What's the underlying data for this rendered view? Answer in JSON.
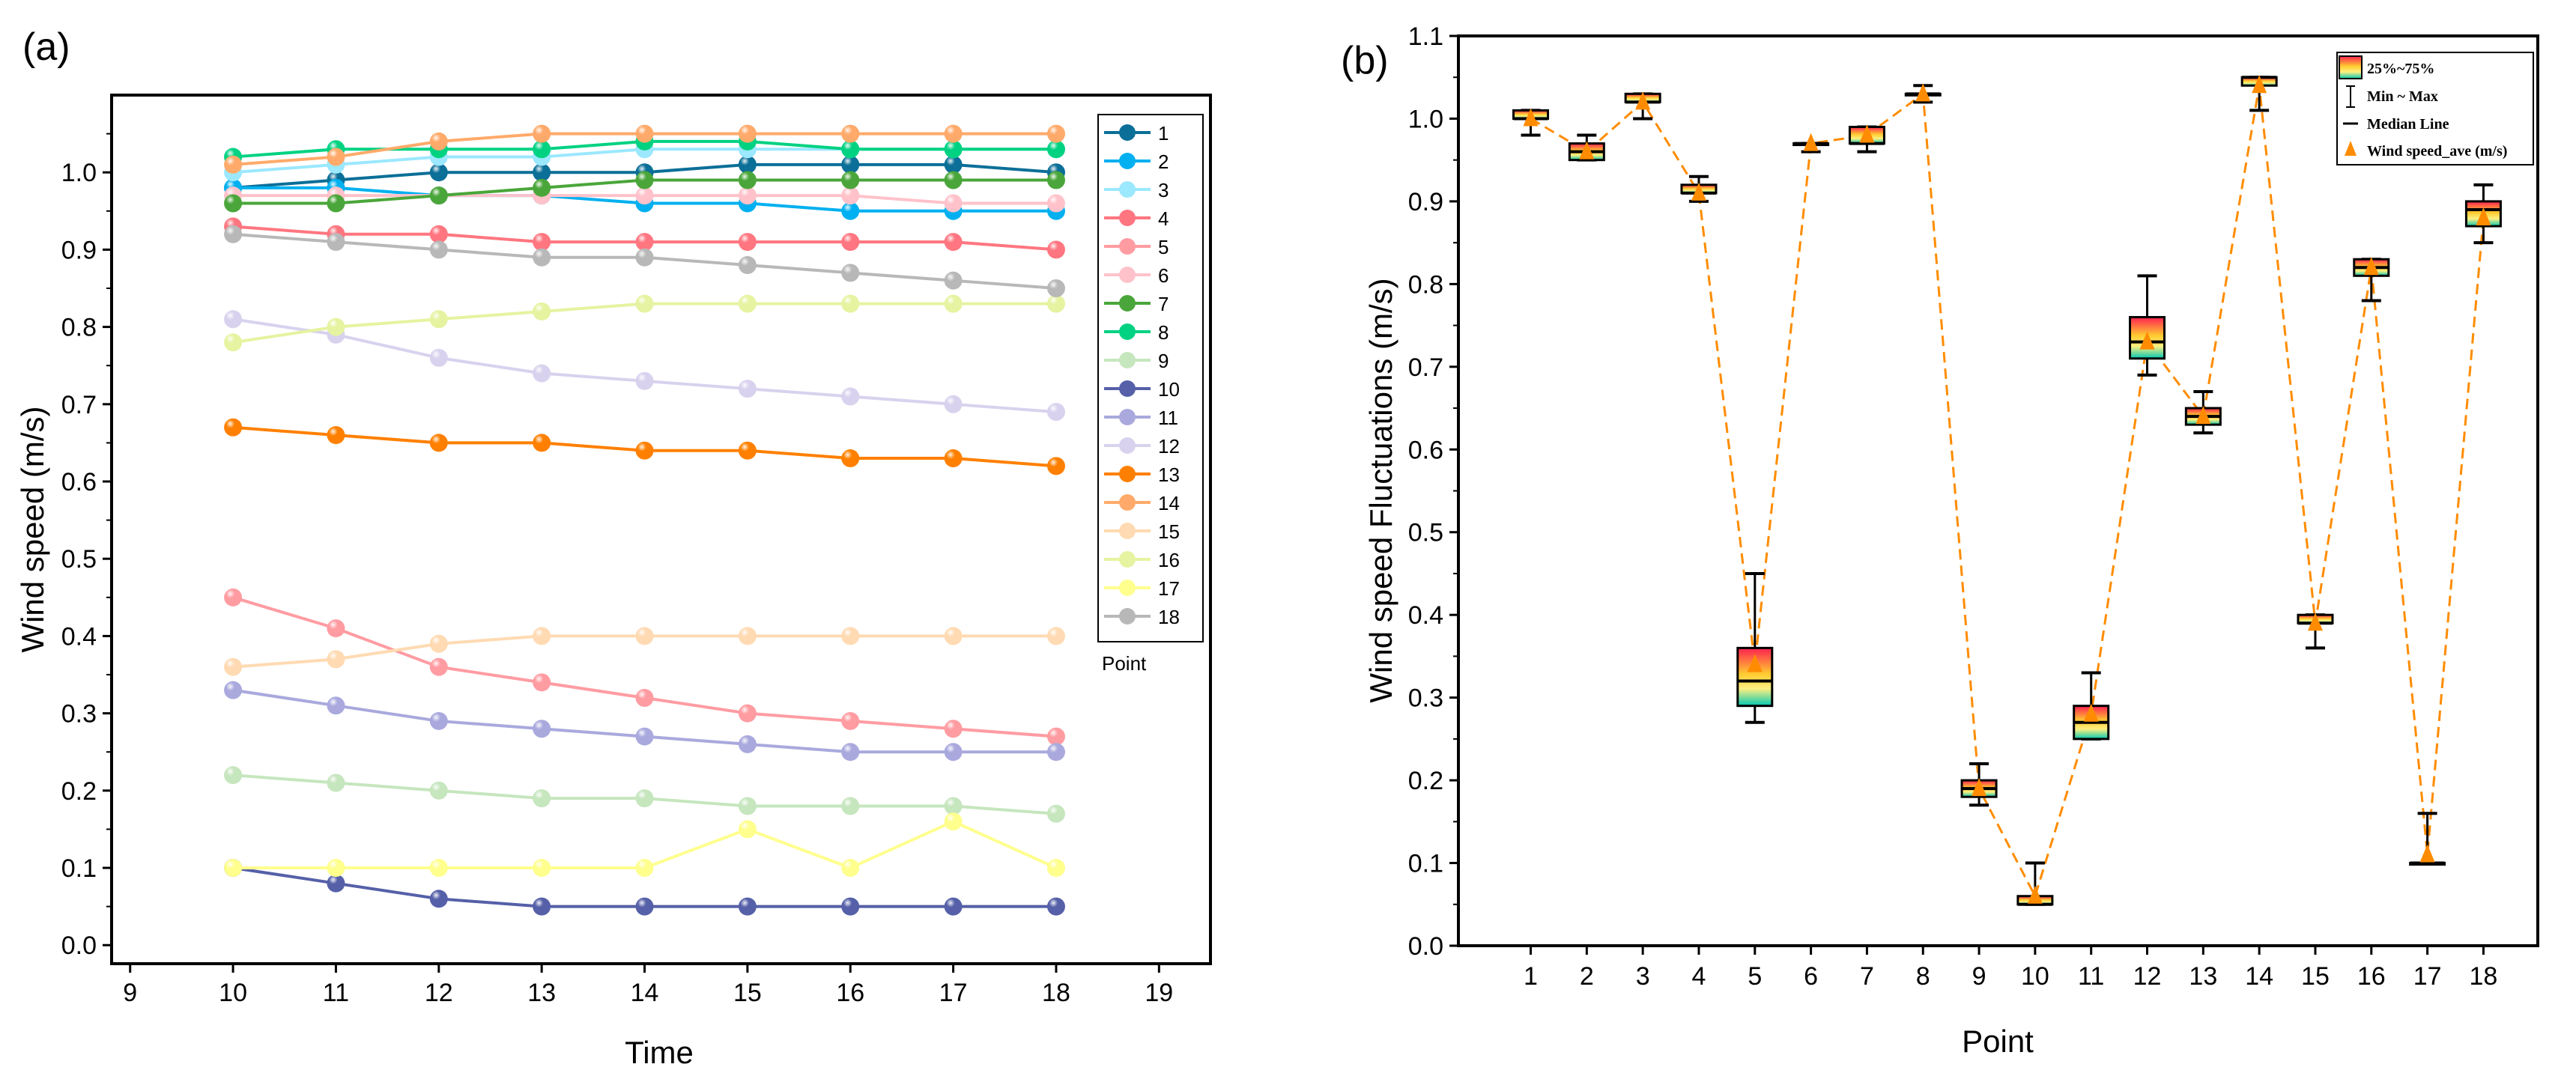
{
  "chart_data": [
    {
      "type": "line",
      "panel_label": "(a)",
      "xlabel": "Time",
      "ylabel": "Wind speed (m/s)",
      "xlim": [
        9,
        19
      ],
      "ylim": [
        0,
        1.1
      ],
      "xticks": [
        9,
        10,
        11,
        12,
        13,
        14,
        15,
        16,
        17,
        18,
        19
      ],
      "yticks": [
        "0.0",
        "0.1",
        "0.2",
        "0.3",
        "0.4",
        "0.5",
        "0.6",
        "0.7",
        "0.8",
        "0.9",
        "1.0"
      ],
      "legend_title": "Point",
      "legend_placement": "right",
      "x": [
        10,
        11,
        12,
        13,
        14,
        15,
        16,
        17,
        18
      ],
      "series": [
        {
          "name": "1",
          "color": "#0b6f98",
          "values": [
            0.98,
            0.99,
            1.0,
            1.0,
            1.0,
            1.01,
            1.01,
            1.01,
            1.0
          ]
        },
        {
          "name": "2",
          "color": "#00b0f0",
          "values": [
            0.98,
            0.98,
            0.97,
            0.97,
            0.96,
            0.96,
            0.95,
            0.95,
            0.95
          ]
        },
        {
          "name": "3",
          "color": "#9be8ff",
          "values": [
            1.0,
            1.01,
            1.02,
            1.02,
            1.03,
            1.03,
            1.03,
            1.03,
            1.03
          ]
        },
        {
          "name": "4",
          "color": "#ff7680",
          "values": [
            0.93,
            0.92,
            0.92,
            0.91,
            0.91,
            0.91,
            0.91,
            0.91,
            0.9
          ]
        },
        {
          "name": "5",
          "color": "#ff9ca2",
          "values": [
            0.45,
            0.41,
            0.36,
            0.34,
            0.32,
            0.3,
            0.29,
            0.28,
            0.27
          ]
        },
        {
          "name": "6",
          "color": "#ffc2ca",
          "values": [
            0.97,
            0.97,
            0.97,
            0.97,
            0.97,
            0.97,
            0.97,
            0.96,
            0.96
          ]
        },
        {
          "name": "7",
          "color": "#4aa63a",
          "values": [
            0.96,
            0.96,
            0.97,
            0.98,
            0.99,
            0.99,
            0.99,
            0.99,
            0.99
          ]
        },
        {
          "name": "8",
          "color": "#00d282",
          "values": [
            1.02,
            1.03,
            1.03,
            1.03,
            1.04,
            1.04,
            1.03,
            1.03,
            1.03
          ]
        },
        {
          "name": "9",
          "color": "#c6e6be",
          "values": [
            0.22,
            0.21,
            0.2,
            0.19,
            0.19,
            0.18,
            0.18,
            0.18,
            0.17
          ]
        },
        {
          "name": "10",
          "color": "#5560a8",
          "values": [
            0.1,
            0.08,
            0.06,
            0.05,
            0.05,
            0.05,
            0.05,
            0.05,
            0.05
          ]
        },
        {
          "name": "11",
          "color": "#a9a9de",
          "values": [
            0.33,
            0.31,
            0.29,
            0.28,
            0.27,
            0.26,
            0.25,
            0.25,
            0.25
          ]
        },
        {
          "name": "12",
          "color": "#d9d2ee",
          "values": [
            0.81,
            0.79,
            0.76,
            0.74,
            0.73,
            0.72,
            0.71,
            0.7,
            0.69
          ]
        },
        {
          "name": "13",
          "color": "#ff8000",
          "values": [
            0.67,
            0.66,
            0.65,
            0.65,
            0.64,
            0.64,
            0.63,
            0.63,
            0.62
          ]
        },
        {
          "name": "14",
          "color": "#ffaa6a",
          "values": [
            1.01,
            1.02,
            1.04,
            1.05,
            1.05,
            1.05,
            1.05,
            1.05,
            1.05
          ]
        },
        {
          "name": "15",
          "color": "#ffdab2",
          "values": [
            0.36,
            0.37,
            0.39,
            0.4,
            0.4,
            0.4,
            0.4,
            0.4,
            0.4
          ]
        },
        {
          "name": "16",
          "color": "#e6f3a0",
          "values": [
            0.78,
            0.8,
            0.81,
            0.82,
            0.83,
            0.83,
            0.83,
            0.83,
            0.83
          ]
        },
        {
          "name": "17",
          "color": "#ffff8e",
          "values": [
            0.1,
            0.1,
            0.1,
            0.1,
            0.1,
            0.15,
            0.1,
            0.16,
            0.1
          ]
        },
        {
          "name": "18",
          "color": "#b8b8b8",
          "values": [
            0.92,
            0.91,
            0.9,
            0.89,
            0.89,
            0.88,
            0.87,
            0.86,
            0.85
          ]
        }
      ]
    },
    {
      "type": "box",
      "panel_label": "(b)",
      "xlabel": "Point",
      "ylabel": "Wind speed Fluctuations (m/s)",
      "ylim": [
        0,
        1.1
      ],
      "yticks": [
        "0.0",
        "0.1",
        "0.2",
        "0.3",
        "0.4",
        "0.5",
        "0.6",
        "0.7",
        "0.8",
        "0.9",
        "1.0",
        "1.1"
      ],
      "categories": [
        "1",
        "2",
        "3",
        "4",
        "5",
        "6",
        "7",
        "8",
        "9",
        "10",
        "11",
        "12",
        "13",
        "14",
        "15",
        "16",
        "17",
        "18"
      ],
      "legend_placement": "top-right",
      "legend": [
        "25%~75%",
        "Min ~ Max",
        "Median Line",
        "Wind speed_ave (m/s)"
      ],
      "mean_color": "#ff8c00",
      "boxes": [
        {
          "min": 0.98,
          "q1": 1.0,
          "median": 1.0,
          "q3": 1.01,
          "max": 1.01,
          "mean": 1.0
        },
        {
          "min": 0.95,
          "q1": 0.95,
          "median": 0.96,
          "q3": 0.97,
          "max": 0.98,
          "mean": 0.96
        },
        {
          "min": 1.0,
          "q1": 1.02,
          "median": 1.02,
          "q3": 1.03,
          "max": 1.03,
          "mean": 1.02
        },
        {
          "min": 0.9,
          "q1": 0.91,
          "median": 0.91,
          "q3": 0.92,
          "max": 0.93,
          "mean": 0.91
        },
        {
          "min": 0.27,
          "q1": 0.29,
          "median": 0.32,
          "q3": 0.36,
          "max": 0.45,
          "mean": 0.34
        },
        {
          "min": 0.96,
          "q1": 0.97,
          "median": 0.97,
          "q3": 0.97,
          "max": 0.97,
          "mean": 0.97
        },
        {
          "min": 0.96,
          "q1": 0.97,
          "median": 0.97,
          "q3": 0.99,
          "max": 0.99,
          "mean": 0.98
        },
        {
          "min": 1.02,
          "q1": 1.03,
          "median": 1.03,
          "q3": 1.03,
          "max": 1.04,
          "mean": 1.03
        },
        {
          "min": 0.17,
          "q1": 0.18,
          "median": 0.19,
          "q3": 0.2,
          "max": 0.22,
          "mean": 0.19
        },
        {
          "min": 0.05,
          "q1": 0.05,
          "median": 0.05,
          "q3": 0.06,
          "max": 0.1,
          "mean": 0.06
        },
        {
          "min": 0.25,
          "q1": 0.25,
          "median": 0.27,
          "q3": 0.29,
          "max": 0.33,
          "mean": 0.28
        },
        {
          "min": 0.69,
          "q1": 0.71,
          "median": 0.73,
          "q3": 0.76,
          "max": 0.81,
          "mean": 0.73
        },
        {
          "min": 0.62,
          "q1": 0.63,
          "median": 0.64,
          "q3": 0.65,
          "max": 0.67,
          "mean": 0.64
        },
        {
          "min": 1.01,
          "q1": 1.04,
          "median": 1.05,
          "q3": 1.05,
          "max": 1.05,
          "mean": 1.04
        },
        {
          "min": 0.36,
          "q1": 0.39,
          "median": 0.39,
          "q3": 0.4,
          "max": 0.4,
          "mean": 0.39
        },
        {
          "min": 0.78,
          "q1": 0.81,
          "median": 0.82,
          "q3": 0.83,
          "max": 0.83,
          "mean": 0.82
        },
        {
          "min": 0.1,
          "q1": 0.1,
          "median": 0.1,
          "q3": 0.1,
          "max": 0.16,
          "mean": 0.11
        },
        {
          "min": 0.85,
          "q1": 0.87,
          "median": 0.89,
          "q3": 0.9,
          "max": 0.92,
          "mean": 0.88
        }
      ]
    }
  ]
}
